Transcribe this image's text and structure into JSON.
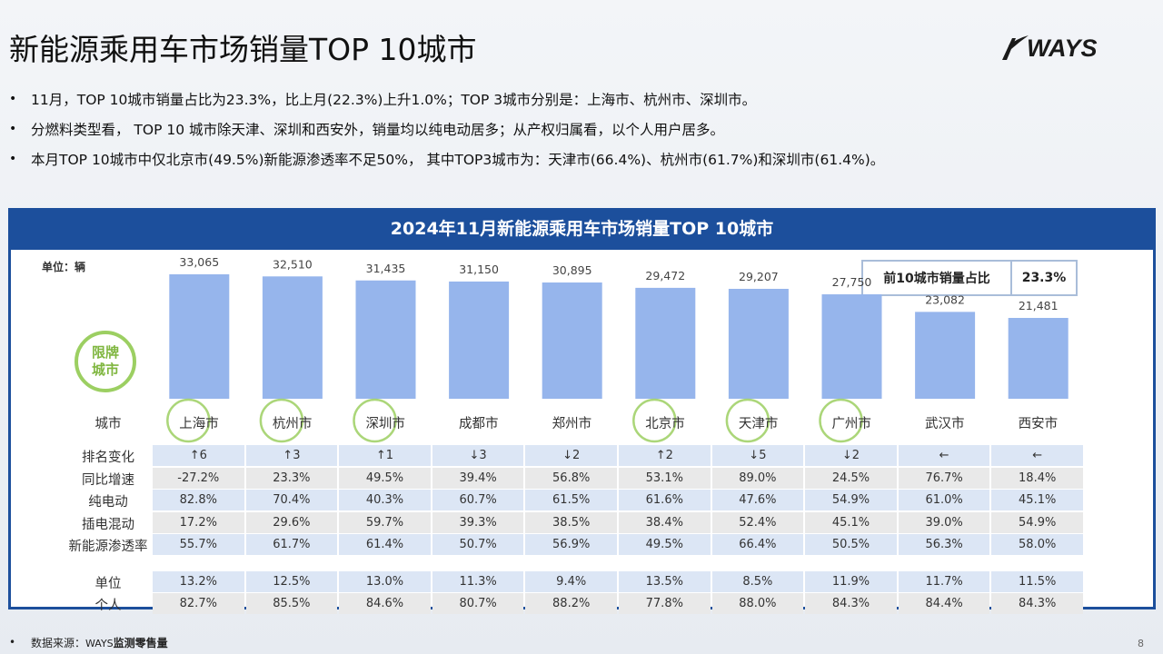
{
  "title": "新能源乘用车市场销量TOP 10城市",
  "logo": {
    "text": "WAYS"
  },
  "bullets": [
    "11月，TOP 10城市销量占比为23.3%，比上月(22.3%)上升1.0%；TOP 3城市分别是：上海市、杭州市、深圳市。",
    "分燃料类型看， TOP 10 城市除天津、深圳和西安外，销量均以纯电动居多；从产权归属看，以个人用户居多。",
    "本月TOP 10城市中仅北京市(49.5%)新能源渗透率不足50%， 其中TOP3城市为：天津市(66.4%)、杭州市(61.7%)和深圳市(61.4%)。"
  ],
  "bullet_symbol": "•",
  "panel": {
    "title": "2024年11月新能源乘用车市场销量TOP 10城市",
    "unit": "单位：辆",
    "ratio_label": "前10城市销量占比",
    "ratio_value": "23.3%",
    "restricted_badge": [
      "限牌",
      "城市"
    ]
  },
  "chart_data": {
    "type": "bar",
    "title": "2024年11月新能源乘用车市场销量TOP 10城市",
    "ylabel": "单位：辆",
    "categories": [
      "上海市",
      "杭州市",
      "深圳市",
      "成都市",
      "郑州市",
      "北京市",
      "天津市",
      "广州市",
      "武汉市",
      "西安市"
    ],
    "values": [
      33065,
      32510,
      31435,
      31150,
      30895,
      29472,
      29207,
      27750,
      23082,
      21481
    ],
    "labels": [
      "33,065",
      "32,510",
      "31,435",
      "31,150",
      "30,895",
      "29,472",
      "29,207",
      "27,750",
      "23,082",
      "21,481"
    ],
    "restricted": [
      true,
      true,
      true,
      false,
      false,
      true,
      true,
      true,
      false,
      false
    ],
    "bar_color": "#96b5ec",
    "ylim": [
      0,
      40000
    ]
  },
  "table": {
    "city_header": "城市",
    "rows": [
      {
        "label": "排名变化",
        "values": [
          "↑6",
          "↑3",
          "↑1",
          "↓3",
          "↓2",
          "↑2",
          "↓5",
          "↓2",
          "←",
          "←"
        ]
      },
      {
        "label": "同比增速",
        "values": [
          "-27.2%",
          "23.3%",
          "49.5%",
          "39.4%",
          "56.8%",
          "53.1%",
          "89.0%",
          "24.5%",
          "76.7%",
          "18.4%"
        ]
      },
      {
        "label": "纯电动",
        "values": [
          "82.8%",
          "70.4%",
          "40.3%",
          "60.7%",
          "61.5%",
          "61.6%",
          "47.6%",
          "54.9%",
          "61.0%",
          "45.1%"
        ]
      },
      {
        "label": "插电混动",
        "values": [
          "17.2%",
          "29.6%",
          "59.7%",
          "39.3%",
          "38.5%",
          "38.4%",
          "52.4%",
          "45.1%",
          "39.0%",
          "54.9%"
        ]
      },
      {
        "label": "新能源渗透率",
        "values": [
          "55.7%",
          "61.7%",
          "61.4%",
          "50.7%",
          "56.9%",
          "49.5%",
          "66.4%",
          "50.5%",
          "56.3%",
          "58.0%"
        ]
      }
    ],
    "rows2": [
      {
        "label": "单位",
        "values": [
          "13.2%",
          "12.5%",
          "13.0%",
          "11.3%",
          "9.4%",
          "13.5%",
          "8.5%",
          "11.9%",
          "11.7%",
          "11.5%"
        ]
      },
      {
        "label": "个人",
        "values": [
          "82.7%",
          "85.5%",
          "84.6%",
          "80.7%",
          "88.2%",
          "77.8%",
          "88.0%",
          "84.3%",
          "84.4%",
          "84.3%"
        ]
      }
    ]
  },
  "footer": {
    "label": "数据来源：",
    "source_prefix": "WAYS",
    "source_rest": "监测零售量"
  },
  "page_number": "8",
  "colors": {
    "brand_blue": "#1c4f9c",
    "bar": "#96b5ec",
    "restricted_green": "#9ccf62",
    "row_blue": "#dce6f5",
    "row_gray": "#e9e9e9"
  }
}
